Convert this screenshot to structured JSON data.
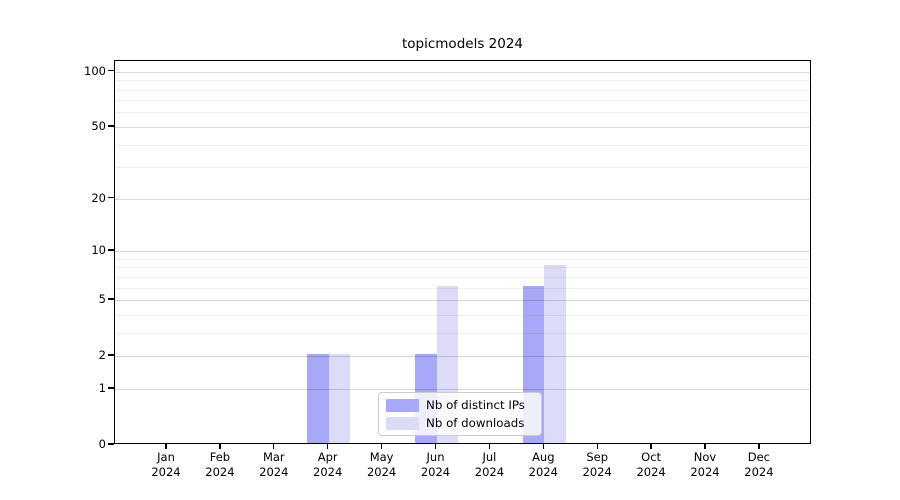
{
  "chart_data": {
    "type": "bar",
    "title": "topicmodels 2024",
    "x_year": "2024",
    "categories": [
      "Jan",
      "Feb",
      "Mar",
      "Apr",
      "May",
      "Jun",
      "Jul",
      "Aug",
      "Sep",
      "Oct",
      "Nov",
      "Dec"
    ],
    "series": [
      {
        "name": "Nb of distinct IPs",
        "color": "#a8a8f8",
        "values": [
          0,
          0,
          0,
          2,
          0,
          2,
          0,
          6,
          0,
          0,
          0,
          0
        ]
      },
      {
        "name": "Nb of downloads",
        "color": "#dcdcf8",
        "values": [
          0,
          0,
          0,
          2,
          0,
          6,
          0,
          8,
          0,
          0,
          0,
          0
        ]
      }
    ],
    "y_axis": {
      "scale": "log1p",
      "ticks": [
        100,
        50,
        20,
        10,
        5,
        2,
        1,
        0
      ],
      "minor_gridlines": [
        3,
        4,
        6,
        7,
        8,
        9,
        30,
        40,
        60,
        70,
        80,
        90
      ],
      "range": [
        0,
        114
      ]
    },
    "grid": true,
    "legend_position": "lower-center-inside",
    "colors": {
      "axis": "#000000",
      "background": "#ffffff"
    }
  }
}
